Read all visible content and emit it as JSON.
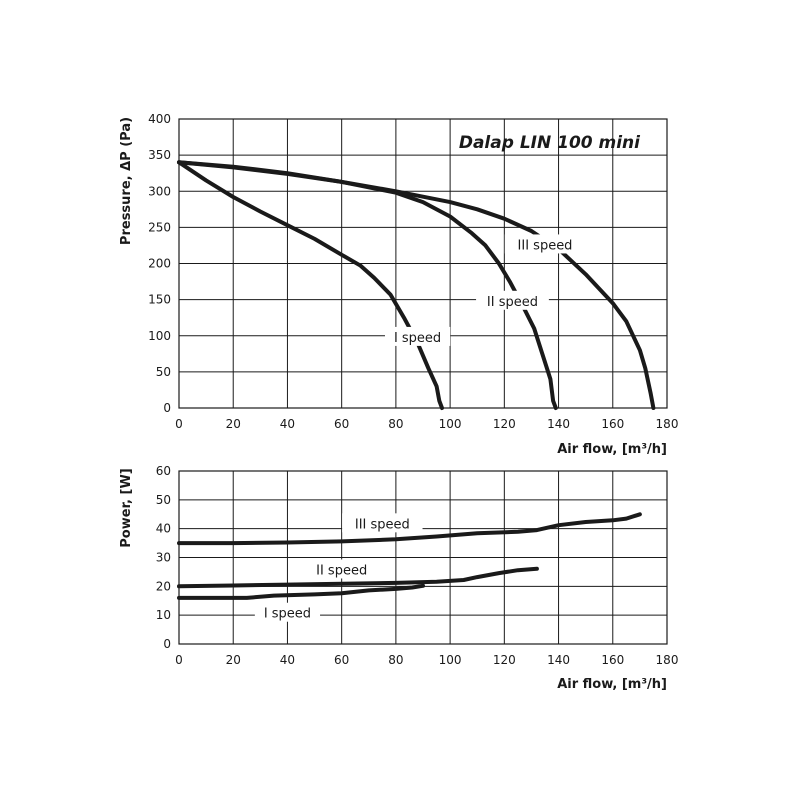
{
  "chart_data": [
    {
      "type": "line",
      "title": "Dalap LIN 100 mini",
      "xlabel": "Air flow, [m³/h]",
      "ylabel": "Pressure, ΔP (Pa)",
      "xlim": [
        0,
        180
      ],
      "ylim": [
        0,
        400
      ],
      "x_ticks": [
        0,
        20,
        40,
        60,
        80,
        100,
        120,
        140,
        160,
        180
      ],
      "y_ticks": [
        0,
        50,
        100,
        150,
        200,
        250,
        300,
        350,
        400
      ],
      "grid": true,
      "series": [
        {
          "name": "I speed",
          "label_at": [
            88,
            97
          ],
          "points": [
            [
              0,
              340
            ],
            [
              10,
              315
            ],
            [
              20,
              292
            ],
            [
              30,
              272
            ],
            [
              40,
              253
            ],
            [
              50,
              234
            ],
            [
              60,
              212
            ],
            [
              67,
              197
            ],
            [
              72,
              180
            ],
            [
              78,
              157
            ],
            [
              83,
              125
            ],
            [
              88,
              90
            ],
            [
              92,
              55
            ],
            [
              95,
              30
            ],
            [
              96,
              10
            ],
            [
              97,
              0
            ]
          ]
        },
        {
          "name": "II speed",
          "label_at": [
            123,
            147
          ],
          "points": [
            [
              0,
              340
            ],
            [
              20,
              333
            ],
            [
              40,
              324
            ],
            [
              60,
              313
            ],
            [
              80,
              298
            ],
            [
              90,
              285
            ],
            [
              100,
              265
            ],
            [
              108,
              242
            ],
            [
              113,
              225
            ],
            [
              118,
              200
            ],
            [
              122,
              175
            ],
            [
              127,
              140
            ],
            [
              131,
              110
            ],
            [
              134,
              75
            ],
            [
              137,
              40
            ],
            [
              138,
              10
            ],
            [
              139,
              0
            ]
          ]
        },
        {
          "name": "III speed",
          "label_at": [
            135,
            225
          ],
          "points": [
            [
              0,
              340
            ],
            [
              20,
              334
            ],
            [
              40,
              325
            ],
            [
              60,
              313
            ],
            [
              80,
              300
            ],
            [
              100,
              285
            ],
            [
              110,
              275
            ],
            [
              120,
              262
            ],
            [
              130,
              245
            ],
            [
              140,
              220
            ],
            [
              150,
              185
            ],
            [
              160,
              145
            ],
            [
              165,
              120
            ],
            [
              170,
              80
            ],
            [
              172,
              55
            ],
            [
              174,
              20
            ],
            [
              175,
              0
            ]
          ]
        }
      ]
    },
    {
      "type": "line",
      "title": "",
      "xlabel": "Air flow, [m³/h]",
      "ylabel": "Power, [W]",
      "xlim": [
        0,
        180
      ],
      "ylim": [
        0,
        60
      ],
      "x_ticks": [
        0,
        20,
        40,
        60,
        80,
        100,
        120,
        140,
        160,
        180
      ],
      "y_ticks": [
        0,
        10,
        20,
        30,
        40,
        50,
        60
      ],
      "grid": true,
      "series": [
        {
          "name": "III speed",
          "label_at": [
            75,
            41.5
          ],
          "points": [
            [
              0,
              35
            ],
            [
              20,
              35
            ],
            [
              40,
              35.2
            ],
            [
              60,
              35.6
            ],
            [
              80,
              36.3
            ],
            [
              95,
              37.3
            ],
            [
              110,
              38.4
            ],
            [
              125,
              38.9
            ],
            [
              132,
              39.5
            ],
            [
              140,
              41.2
            ],
            [
              150,
              42.3
            ],
            [
              160,
              42.9
            ],
            [
              165,
              43.5
            ],
            [
              170,
              45
            ]
          ]
        },
        {
          "name": "II speed",
          "label_at": [
            60,
            25.5
          ],
          "points": [
            [
              0,
              20
            ],
            [
              20,
              20.3
            ],
            [
              40,
              20.6
            ],
            [
              60,
              20.9
            ],
            [
              80,
              21.2
            ],
            [
              95,
              21.6
            ],
            [
              105,
              22.2
            ],
            [
              110,
              23.2
            ],
            [
              118,
              24.6
            ],
            [
              125,
              25.6
            ],
            [
              132,
              26.1
            ]
          ]
        },
        {
          "name": "I speed",
          "label_at": [
            40,
            10.5
          ],
          "points": [
            [
              0,
              16
            ],
            [
              25,
              16
            ],
            [
              35,
              16.8
            ],
            [
              50,
              17.2
            ],
            [
              60,
              17.6
            ],
            [
              70,
              18.6
            ],
            [
              80,
              19.1
            ],
            [
              86,
              19.6
            ],
            [
              90,
              20.2
            ]
          ]
        }
      ]
    }
  ]
}
